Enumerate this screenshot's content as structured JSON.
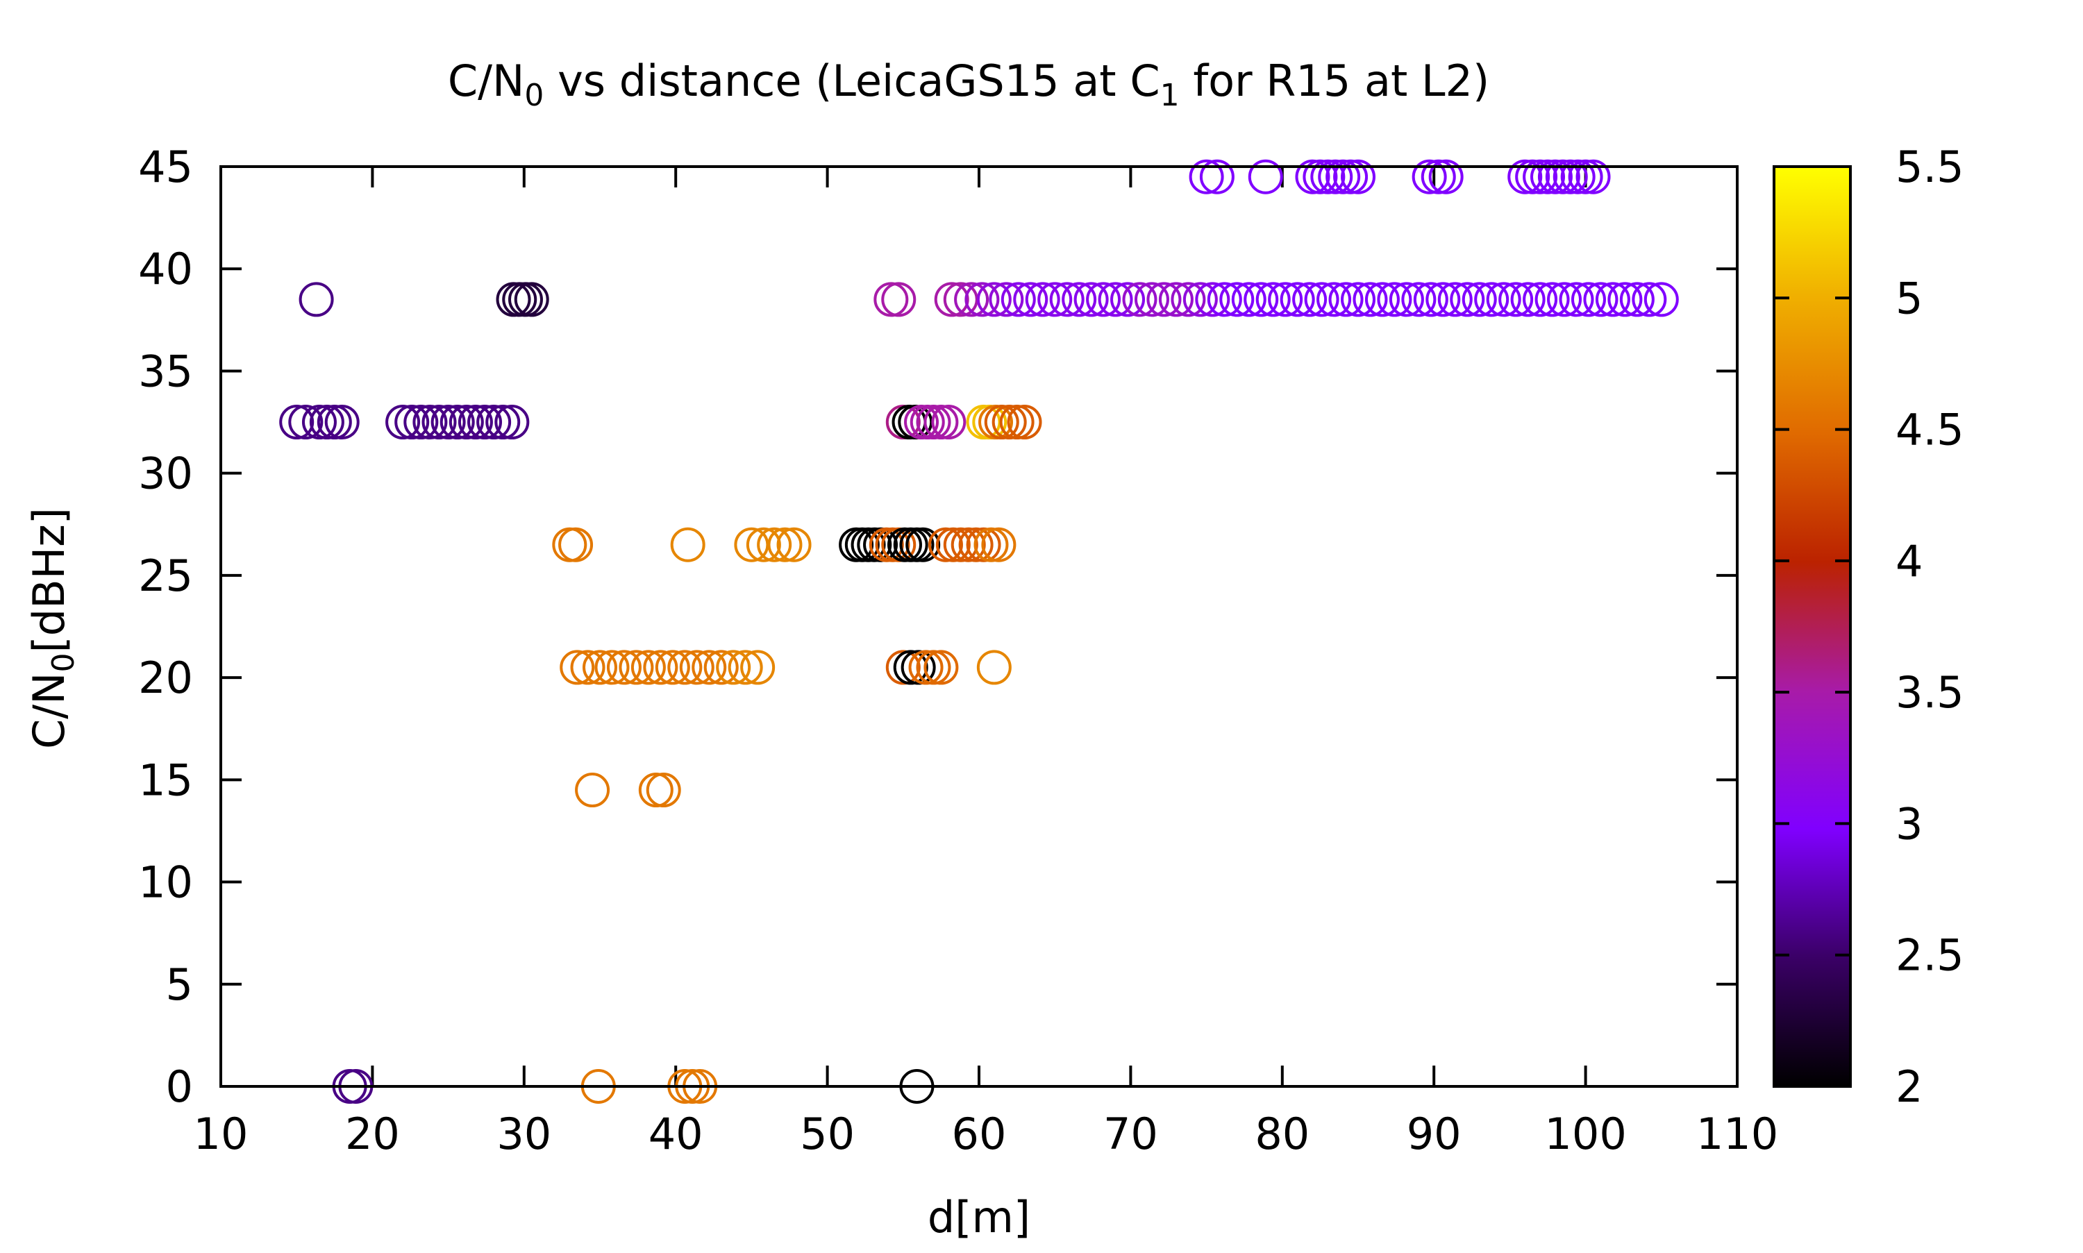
{
  "chart_data": {
    "type": "scatter",
    "title": "C/N₀ vs distance (LeicaGS15 at C₁ for R15 at L2)",
    "title_parts": {
      "a": "C/N",
      "sub1": "0",
      "b": " vs distance (LeicaGS15 at C",
      "sub2": "1",
      "c": " for R15 at L2)"
    },
    "xlabel": "d[m]",
    "ylabel": "C/N₀[dBHz]",
    "ylabel_parts": {
      "a": "C/N",
      "sub": "0",
      "b": "[dBHz]"
    },
    "xlim": [
      10,
      110
    ],
    "ylim": [
      0,
      45
    ],
    "x_ticks": [
      "10",
      "20",
      "30",
      "40",
      "50",
      "60",
      "70",
      "80",
      "90",
      "100",
      "110"
    ],
    "y_ticks": [
      "0",
      "5",
      "10",
      "15",
      "20",
      "25",
      "30",
      "35",
      "40",
      "45"
    ],
    "colorbar": {
      "range": [
        2,
        5.5
      ],
      "ticks": [
        "2",
        "2.5",
        "3",
        "3.5",
        "4",
        "4.5",
        "5",
        "5.5"
      ],
      "palette": "black-purple-magenta-red-orange-yellow"
    },
    "marker": "open-circle",
    "clusters": [
      {
        "y": 44.5,
        "x": [
          75.0,
          75.7,
          78.9,
          82.0,
          82.5,
          83.0,
          83.5,
          84.0,
          84.5,
          85.0,
          89.7,
          90.3,
          90.8,
          96.0,
          96.5,
          97.0,
          97.5,
          98.0,
          98.5,
          99.0,
          99.5,
          100.0,
          100.5
        ],
        "c": [
          3.0,
          3.0,
          3.0,
          3.0,
          3.0,
          3.0,
          3.0,
          3.0,
          3.0,
          3.0,
          3.0,
          3.0,
          3.0,
          3.0,
          3.0,
          3.0,
          3.0,
          3.0,
          3.0,
          3.0,
          3.0,
          3.0,
          3.0
        ]
      },
      {
        "y": 38.5,
        "x": [
          16.3,
          29.3,
          29.7,
          30.1,
          30.5
        ],
        "c": [
          2.6,
          2.3,
          2.3,
          2.3,
          2.3
        ]
      },
      {
        "y": 38.5,
        "x": [
          54.2,
          54.7,
          58.2,
          58.8,
          59.5,
          60.2,
          61.0,
          61.8,
          62.6,
          63.4,
          64.2,
          65.0,
          65.8,
          66.6,
          67.4,
          68.2,
          69.0,
          69.8,
          70.6,
          71.4,
          72.2,
          73.0,
          73.8,
          74.6,
          75.4,
          76.2,
          77.0,
          77.8,
          78.6,
          79.4,
          80.2,
          81.0,
          81.8,
          82.6,
          83.4,
          84.2,
          85.0,
          85.8,
          86.6,
          87.4,
          88.2,
          89.0,
          89.8,
          90.6,
          91.4,
          92.2,
          93.0,
          93.8,
          94.6,
          95.4,
          96.2,
          97.0,
          97.8,
          98.6,
          99.4,
          100.2,
          101.0,
          101.8,
          102.6,
          103.4,
          104.2,
          105.0
        ],
        "c": [
          3.5,
          3.5,
          3.5,
          3.5,
          3.4,
          3.3,
          3.2,
          3.2,
          3.1,
          3.1,
          3.1,
          3.1,
          3.1,
          3.1,
          3.1,
          3.1,
          3.1,
          3.1,
          3.3,
          3.3,
          3.3,
          3.3,
          3.3,
          3.2,
          3.1,
          3.0,
          3.0,
          3.0,
          3.0,
          3.0,
          3.0,
          3.0,
          3.0,
          3.0,
          3.0,
          3.0,
          3.0,
          3.0,
          3.0,
          3.0,
          3.0,
          3.0,
          3.0,
          3.0,
          3.0,
          3.0,
          3.0,
          3.0,
          3.0,
          3.0,
          3.0,
          3.0,
          3.0,
          3.0,
          3.0,
          3.0,
          3.0,
          3.0,
          3.0,
          3.0,
          3.0,
          3.0
        ]
      },
      {
        "y": 32.5,
        "x": [
          15.0,
          15.6,
          16.5,
          17.0,
          17.5,
          18.0,
          22.0,
          22.6,
          23.2,
          23.8,
          24.4,
          25.0,
          25.6,
          26.2,
          26.8,
          27.4,
          28.0,
          28.6,
          29.2
        ],
        "c": [
          2.6,
          2.6,
          2.6,
          2.6,
          2.6,
          2.6,
          2.6,
          2.6,
          2.6,
          2.6,
          2.6,
          2.6,
          2.6,
          2.6,
          2.6,
          2.6,
          2.6,
          2.6,
          2.6
        ]
      },
      {
        "y": 32.5,
        "x": [
          55.0,
          55.4,
          55.8,
          56.2,
          56.6,
          57.0,
          57.5,
          58.0,
          60.3,
          60.7,
          61.1,
          61.5,
          62.0,
          62.5,
          63.0
        ],
        "c": [
          3.6,
          2.0,
          2.0,
          3.5,
          3.5,
          3.5,
          3.5,
          3.5,
          5.1,
          5.1,
          4.6,
          4.4,
          4.4,
          4.4,
          4.4
        ]
      },
      {
        "y": 26.5,
        "x": [
          33.0,
          33.4,
          40.8,
          45.0,
          45.8,
          46.5,
          47.2,
          47.8,
          51.9,
          52.3,
          52.7,
          53.1,
          53.5,
          53.9,
          54.3,
          54.7,
          55.1,
          55.5,
          55.9,
          56.3,
          57.8,
          58.3,
          58.8,
          59.3,
          59.8,
          60.3,
          60.8,
          61.3
        ],
        "c": [
          4.6,
          4.6,
          4.7,
          4.7,
          4.7,
          4.7,
          4.7,
          4.7,
          2.0,
          2.0,
          2.0,
          2.0,
          2.0,
          4.4,
          4.4,
          4.4,
          2.0,
          2.0,
          2.0,
          2.0,
          4.4,
          4.4,
          4.4,
          4.4,
          4.4,
          4.4,
          4.6,
          4.6
        ]
      },
      {
        "y": 20.5,
        "x": [
          33.5,
          34.2,
          35.0,
          35.8,
          36.6,
          37.4,
          38.2,
          39.0,
          39.8,
          40.6,
          41.4,
          42.2,
          43.0,
          43.8,
          44.6,
          45.4,
          55.0,
          55.5,
          56.0,
          56.5,
          57.0,
          57.5,
          61.0
        ],
        "c": [
          4.6,
          4.6,
          4.6,
          4.6,
          4.6,
          4.6,
          4.6,
          4.6,
          4.6,
          4.6,
          4.6,
          4.6,
          4.6,
          4.7,
          4.7,
          4.7,
          4.4,
          2.0,
          2.0,
          4.5,
          4.5,
          4.5,
          4.7
        ]
      },
      {
        "y": 14.5,
        "x": [
          34.5,
          38.7,
          39.2
        ],
        "c": [
          4.6,
          4.6,
          4.6
        ]
      },
      {
        "y": 0,
        "x": [
          18.5,
          18.9,
          34.9,
          40.6,
          41.1,
          41.6
        ],
        "c": [
          2.6,
          2.6,
          4.6,
          4.6,
          4.6,
          4.6
        ]
      },
      {
        "y": 0,
        "x": [
          55.9
        ],
        "c": [
          2.0
        ]
      }
    ]
  }
}
